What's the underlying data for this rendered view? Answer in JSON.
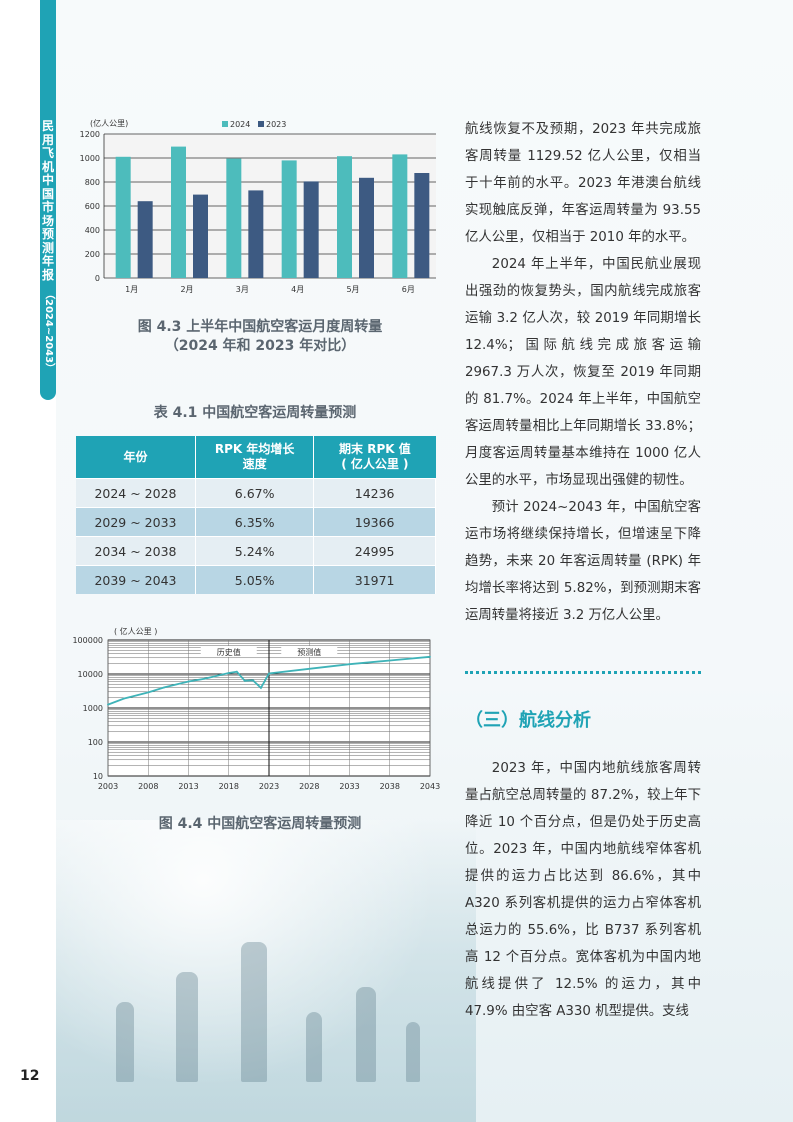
{
  "sidebar": {
    "title": "民用飞机中国市场预测年报",
    "years": "（2024~2043）"
  },
  "page_number": "12",
  "figure_4_3": {
    "unit": "(亿人公里)",
    "caption_line1": "图 4.3  上半年中国航空客运月度周转量",
    "caption_line2": "（2024 年和 2023 年对比）"
  },
  "table_4_1": {
    "caption": "表 4.1 中国航空客运周转量预测",
    "headers": [
      "年份",
      "RPK 年均增长速度",
      "期末 RPK 值（亿人公里）"
    ],
    "header_lines": [
      [
        "年份"
      ],
      [
        "RPK 年均增长",
        "速度"
      ],
      [
        "期末 RPK 值",
        "( 亿人公里 )"
      ]
    ],
    "rows": [
      [
        "2024 ~ 2028",
        "6.67%",
        "14236"
      ],
      [
        "2029 ~ 2033",
        "6.35%",
        "19366"
      ],
      [
        "2034 ~ 2038",
        "5.24%",
        "24995"
      ],
      [
        "2039 ~ 2043",
        "5.05%",
        "31971"
      ]
    ]
  },
  "figure_4_4": {
    "unit": "( 亿人公里 )",
    "history_label": "历史值",
    "forecast_label": "预测值",
    "caption": "图 4.4  中国航空客运周转量预测"
  },
  "chart_data": [
    {
      "type": "bar",
      "categories": [
        "1月",
        "2月",
        "3月",
        "4月",
        "5月",
        "6月"
      ],
      "series": [
        {
          "name": "2024",
          "values": [
            1010,
            1095,
            995,
            980,
            1015,
            1030
          ],
          "color": "#4dbcbc"
        },
        {
          "name": "2023",
          "values": [
            640,
            695,
            730,
            805,
            835,
            875
          ],
          "color": "#3d5a82"
        }
      ],
      "ylabel": "(亿人公里)",
      "ylim": [
        0,
        1200
      ],
      "yticks": [
        0,
        200,
        400,
        600,
        800,
        1000,
        1200
      ],
      "legend": "top",
      "grid": true
    },
    {
      "type": "line",
      "x": [
        2003,
        2005,
        2008,
        2010,
        2013,
        2015,
        2018,
        2019,
        2020,
        2021,
        2022,
        2023,
        2028,
        2033,
        2038,
        2043
      ],
      "values": [
        1260,
        1900,
        2880,
        4040,
        6000,
        7280,
        10710,
        11705,
        6300,
        6530,
        3900,
        10310,
        14236,
        19366,
        24995,
        31971
      ],
      "xticks": [
        2003,
        2008,
        2013,
        2018,
        2023,
        2028,
        2033,
        2038,
        2043
      ],
      "yticks": [
        10,
        100,
        1000,
        10000,
        100000
      ],
      "ylabel": "( 亿人公里 )",
      "yscale": "log",
      "ylim": [
        10,
        100000
      ],
      "divider_x": 2023,
      "grid": true,
      "color": "#3fb3b8"
    }
  ],
  "right_column": {
    "p1": "航线恢复不及预期，2023 年共完成旅客周转量 1129.52 亿人公里，仅相当于十年前的水平。2023 年港澳台航线实现触底反弹，年客运周转量为 93.55 亿人公里，仅相当于 2010 年的水平。",
    "p2": "2024 年上半年，中国民航业展现出强劲的恢复势头，国内航线完成旅客运输 3.2 亿人次，较 2019 年同期增长 12.4%；国际航线完成旅客运输 2967.3 万人次，恢复至 2019 年同期的 81.7%。2024 年上半年，中国航空客运周转量相比上年同期增长 33.8%；月度客运周转量基本维持在 1000 亿人公里的水平，市场显现出强健的韧性。",
    "p3": "预计 2024~2043 年，中国航空客运市场将继续保持增长，但增速呈下降趋势，未来 20 年客运周转量 (RPK) 年均增长率将达到 5.82%，到预测期末客运周转量将接近 3.2 万亿人公里。",
    "section_title": "（三）航线分析",
    "p4": "2023 年，中国内地航线旅客周转量占航空总周转量的 87.2%，较上年下降近 10 个百分点，但是仍处于历史高位。2023 年，中国内地航线窄体客机提供的运力占比达到 86.6%，其中 A320 系列客机提供的运力占窄体客机总运力的 55.6%，比 B737 系列客机高 12 个百分点。宽体客机为中国内地航线提供了 12.5% 的运力，其中 47.9% 由空客 A330 机型提供。支线"
  }
}
